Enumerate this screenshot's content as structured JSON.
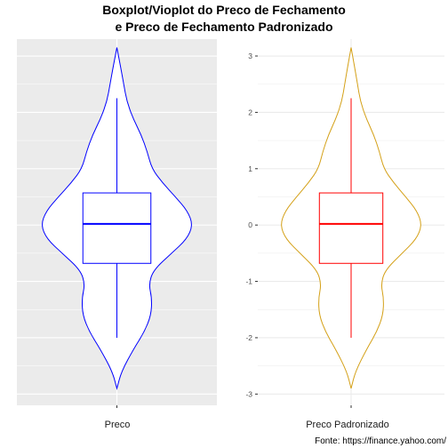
{
  "chart_data": {
    "title": [
      "Boxplot/Vioplot do Preco de Fechamento",
      "e Preco de Fechamento Padronizado"
    ],
    "caption": "Fonte: https://finance.yahoo.com/",
    "panels": [
      {
        "type": "violin",
        "xlabel": "Preco",
        "violin_color": "#0000ff",
        "box_color": "#0000ff",
        "background": "#ebebeb",
        "grid": true,
        "ylim": [
          -3.2,
          3.3
        ],
        "show_y_ticks": false,
        "violin": {
          "min": -2.9,
          "max": 3.15
        },
        "box": {
          "lower_whisker": -2.0,
          "q1": -0.68,
          "median": 0.02,
          "q3": 0.57,
          "upper_whisker": 2.25
        }
      },
      {
        "type": "violin",
        "xlabel": "Preco Padronizado",
        "violin_color": "#d4a017",
        "box_color": "#ff0000",
        "background": "#ffffff",
        "grid": true,
        "ylim": [
          -3.2,
          3.3
        ],
        "show_y_ticks": true,
        "y_ticks": [
          "-3",
          "-2",
          "-1",
          "0",
          "1",
          "2",
          "3"
        ],
        "violin": {
          "min": -2.9,
          "max": 3.15
        },
        "box": {
          "lower_whisker": -2.0,
          "q1": -0.68,
          "median": 0.02,
          "q3": 0.57,
          "upper_whisker": 2.25
        }
      }
    ]
  }
}
